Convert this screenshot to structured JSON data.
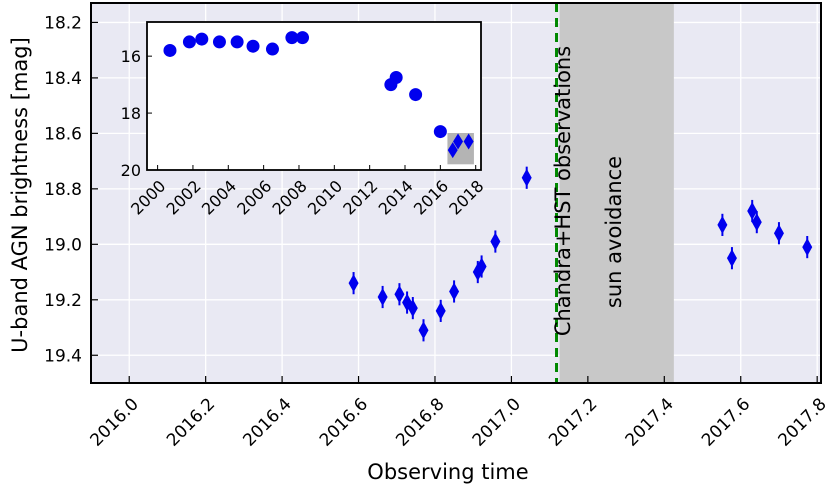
{
  "chart_data": [
    {
      "type": "scatter",
      "xlabel": "Observing time",
      "ylabel": "U-band AGN brightness [mag]",
      "xlim": [
        2015.9,
        2017.81
      ],
      "ylim": [
        19.5,
        18.13
      ],
      "y_inverted": true,
      "background": "#e9e9f3",
      "grid": true,
      "xticks": [
        "2016.0",
        "2016.2",
        "2016.4",
        "2016.6",
        "2016.8",
        "2017.0",
        "2017.2",
        "2017.4",
        "2017.6",
        "2017.8"
      ],
      "yticks": [
        "18.2",
        "18.4",
        "18.6",
        "18.8",
        "19.0",
        "19.2",
        "19.4"
      ],
      "marker": "diamond",
      "marker_color": "#0000ee",
      "series": [
        {
          "points": [
            {
              "x": 2016.587,
              "y": 19.14,
              "err": 0.04
            },
            {
              "x": 2016.663,
              "y": 19.19,
              "err": 0.04
            },
            {
              "x": 2016.707,
              "y": 19.18,
              "err": 0.04
            },
            {
              "x": 2016.727,
              "y": 19.21,
              "err": 0.04
            },
            {
              "x": 2016.742,
              "y": 19.23,
              "err": 0.04
            },
            {
              "x": 2016.77,
              "y": 19.31,
              "err": 0.04
            },
            {
              "x": 2016.815,
              "y": 19.24,
              "err": 0.04
            },
            {
              "x": 2016.85,
              "y": 19.17,
              "err": 0.04
            },
            {
              "x": 2016.912,
              "y": 19.1,
              "err": 0.04
            },
            {
              "x": 2016.922,
              "y": 19.08,
              "err": 0.04
            },
            {
              "x": 2016.958,
              "y": 18.99,
              "err": 0.04
            },
            {
              "x": 2017.04,
              "y": 18.76,
              "err": 0.04
            },
            {
              "x": 2017.552,
              "y": 18.93,
              "err": 0.04
            },
            {
              "x": 2017.577,
              "y": 19.05,
              "err": 0.04
            },
            {
              "x": 2017.63,
              "y": 18.88,
              "err": 0.04
            },
            {
              "x": 2017.642,
              "y": 18.92,
              "err": 0.04
            },
            {
              "x": 2017.7,
              "y": 18.96,
              "err": 0.04
            },
            {
              "x": 2017.774,
              "y": 19.01,
              "err": 0.04
            }
          ]
        }
      ],
      "vline": {
        "x": 2017.118,
        "label": "Chandra+HST observations",
        "color": "#008800",
        "style": "dashed"
      },
      "shaded_region": {
        "x0": 2017.126,
        "x1": 2017.425,
        "label": "sun avoidance",
        "color": "#c8c8c8"
      }
    },
    {
      "type": "scatter",
      "inset": true,
      "xlim": [
        1999.4,
        2018.3
      ],
      "ylim": [
        20,
        14.8
      ],
      "y_inverted": true,
      "grid": false,
      "xticks": [
        "2000",
        "2002",
        "2004",
        "2006",
        "2008",
        "2010",
        "2012",
        "2014",
        "2016",
        "2018"
      ],
      "yticks": [
        "16",
        "18",
        "20"
      ],
      "marker_color": "#0000ee",
      "series": [
        {
          "points": [
            {
              "x": 2000.7,
              "y": 15.8,
              "marker": "circle"
            },
            {
              "x": 2001.8,
              "y": 15.5,
              "marker": "circle"
            },
            {
              "x": 2002.5,
              "y": 15.4,
              "marker": "circle"
            },
            {
              "x": 2003.5,
              "y": 15.5,
              "marker": "circle"
            },
            {
              "x": 2004.5,
              "y": 15.5,
              "marker": "circle"
            },
            {
              "x": 2005.4,
              "y": 15.65,
              "marker": "circle"
            },
            {
              "x": 2006.5,
              "y": 15.75,
              "marker": "circle"
            },
            {
              "x": 2007.6,
              "y": 15.35,
              "marker": "circle"
            },
            {
              "x": 2008.2,
              "y": 15.35,
              "marker": "circle"
            },
            {
              "x": 2013.2,
              "y": 17.0,
              "marker": "circle"
            },
            {
              "x": 2013.5,
              "y": 16.75,
              "marker": "circle"
            },
            {
              "x": 2014.6,
              "y": 17.35,
              "marker": "circle"
            },
            {
              "x": 2016.0,
              "y": 18.65,
              "marker": "circle"
            },
            {
              "x": 2016.7,
              "y": 19.3,
              "marker": "diamond"
            },
            {
              "x": 2017.0,
              "y": 19.0,
              "marker": "diamond"
            },
            {
              "x": 2017.6,
              "y": 19.0,
              "marker": "diamond"
            }
          ]
        }
      ],
      "highlight_box": {
        "x0": 2016.4,
        "x1": 2017.9,
        "y0": 18.7,
        "y1": 19.8,
        "color": "#b4b4b4"
      }
    }
  ]
}
